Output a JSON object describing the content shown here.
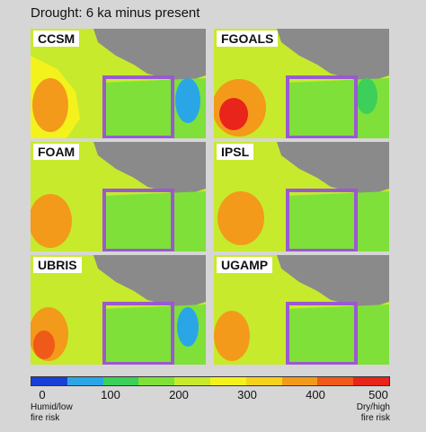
{
  "title": "Drought: 6 ka minus present",
  "panels": [
    {
      "label": "CCSM"
    },
    {
      "label": "FGOALS"
    },
    {
      "label": "FOAM"
    },
    {
      "label": "IPSL"
    },
    {
      "label": "UBRIS"
    },
    {
      "label": "UGAMP"
    }
  ],
  "colorbar": {
    "colors": [
      "#1a3fd6",
      "#2aa6e6",
      "#3ccf5a",
      "#7fe03a",
      "#c7ea2c",
      "#f4f21c",
      "#f5d21c",
      "#f39a1a",
      "#ef5a18",
      "#e8241b"
    ],
    "ticks": [
      "0",
      "100",
      "200",
      "300",
      "400",
      "500"
    ],
    "left_note": [
      "Humid/low",
      "fire risk"
    ],
    "right_note": [
      "Dry/high",
      "fire risk"
    ]
  },
  "colors": {
    "ocean": "#8a8a8a",
    "box": "#9b59d0"
  }
}
